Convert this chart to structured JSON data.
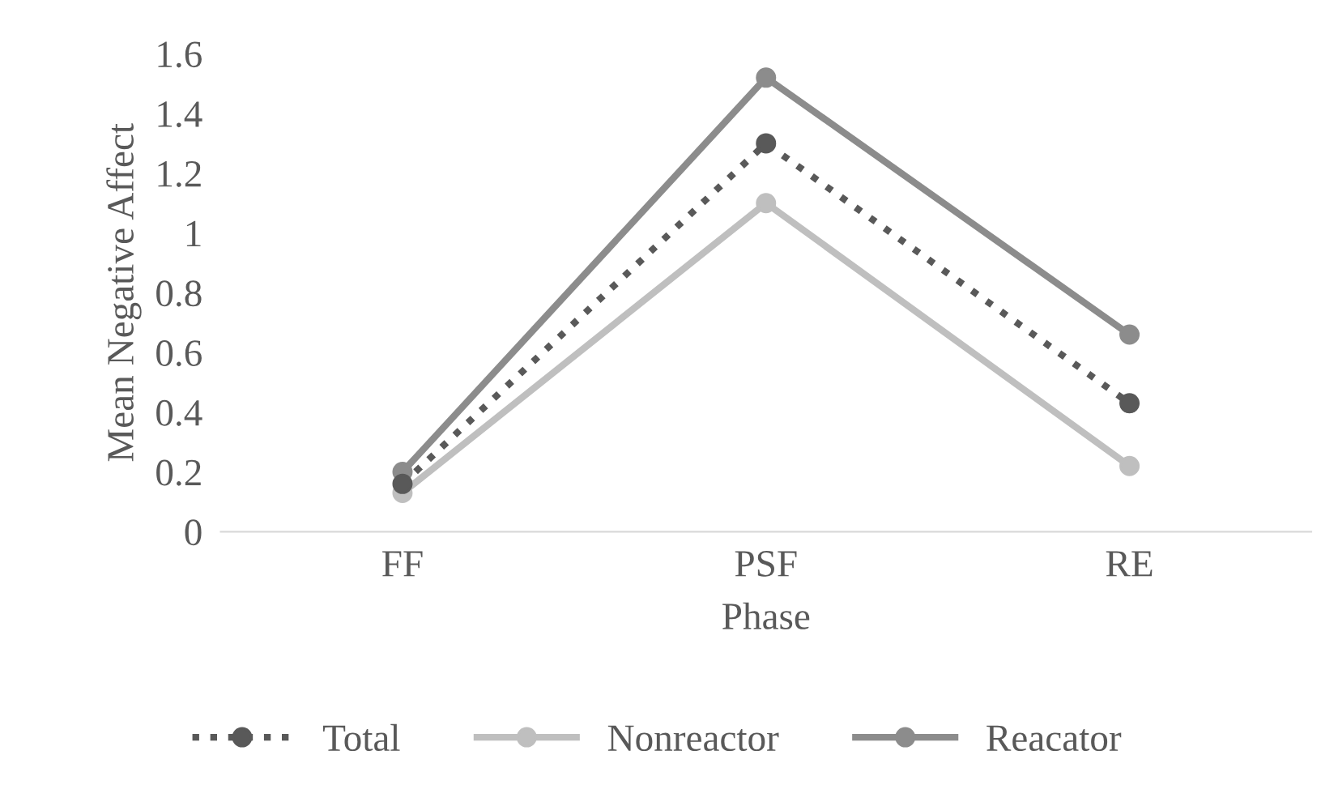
{
  "chart_data": {
    "type": "line",
    "xlabel": "Phase",
    "ylabel": "Mean Negative Affect",
    "categories": [
      "FF",
      "PSF",
      "RE"
    ],
    "series": [
      {
        "name": "Total",
        "color": "#595959",
        "values": [
          0.16,
          1.3,
          0.43
        ],
        "line_style": "dotted"
      },
      {
        "name": "Nonreactor",
        "color": "#bfbfbf",
        "values": [
          0.13,
          1.1,
          0.22
        ],
        "line_style": "solid"
      },
      {
        "name": "Reacator",
        "color": "#8c8c8c",
        "values": [
          0.2,
          1.52,
          0.66
        ],
        "line_style": "solid"
      }
    ],
    "ylim": [
      0,
      1.6
    ],
    "yticks": [
      0,
      0.2,
      0.4,
      0.6,
      0.8,
      1,
      1.2,
      1.4,
      1.6
    ],
    "marker": "circle",
    "grid": false,
    "legend": "bottom"
  }
}
